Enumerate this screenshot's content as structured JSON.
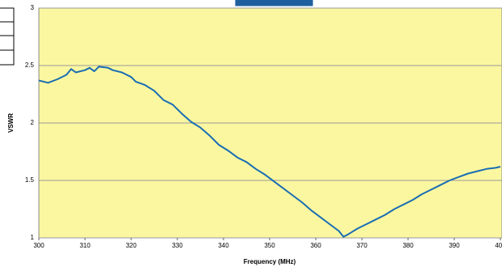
{
  "chart_data": {
    "type": "line",
    "xlabel": "Frequency (MHz)",
    "ylabel": "VSWR",
    "x": [
      300,
      302,
      304,
      306,
      307,
      308,
      310,
      311,
      312,
      313,
      315,
      316,
      318,
      320,
      321,
      323,
      325,
      327,
      329,
      331,
      333,
      335,
      337,
      339,
      341,
      343,
      345,
      347,
      349,
      351,
      353,
      355,
      357,
      359,
      361,
      363,
      365,
      366,
      367,
      369,
      371,
      373,
      375,
      377,
      379,
      381,
      383,
      385,
      387,
      389,
      391,
      393,
      395,
      397,
      399,
      400
    ],
    "values": [
      2.37,
      2.35,
      2.38,
      2.42,
      2.47,
      2.44,
      2.46,
      2.48,
      2.45,
      2.49,
      2.48,
      2.46,
      2.44,
      2.4,
      2.36,
      2.33,
      2.28,
      2.2,
      2.16,
      2.08,
      2.01,
      1.96,
      1.89,
      1.81,
      1.76,
      1.7,
      1.66,
      1.6,
      1.55,
      1.49,
      1.43,
      1.37,
      1.31,
      1.24,
      1.18,
      1.12,
      1.06,
      1.01,
      1.03,
      1.08,
      1.12,
      1.16,
      1.2,
      1.25,
      1.29,
      1.33,
      1.38,
      1.42,
      1.46,
      1.5,
      1.53,
      1.56,
      1.58,
      1.6,
      1.61,
      1.62
    ],
    "color": "#1a6db3",
    "xlim": [
      300,
      400
    ],
    "xticks": [
      300,
      310,
      320,
      330,
      340,
      350,
      360,
      370,
      380,
      390,
      400
    ],
    "ylim": [
      1,
      3
    ],
    "yticks": [
      1,
      1.5,
      2,
      2.5,
      3
    ],
    "grid": true
  }
}
